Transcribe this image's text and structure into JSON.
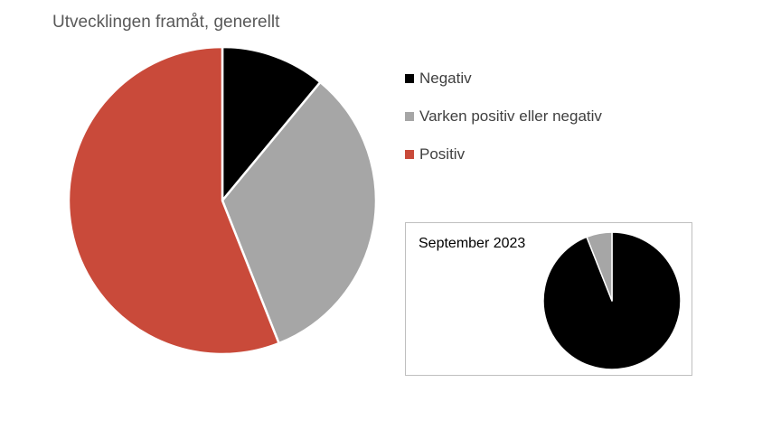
{
  "chart_data": [
    {
      "type": "pie",
      "title": "Utvecklingen framåt, generellt",
      "categories": [
        "Negativ",
        "Varken positiv eller negativ",
        "Positiv"
      ],
      "values": [
        11,
        33,
        56
      ],
      "colors": [
        "#000000",
        "#a6a6a6",
        "#c94a3a"
      ],
      "legend": "right",
      "start_angle_deg": 0,
      "direction": "clockwise"
    },
    {
      "type": "pie",
      "title": "September 2023",
      "categories": [
        "Negativ",
        "Varken positiv eller negativ",
        "Positiv"
      ],
      "values": [
        94,
        6,
        0
      ],
      "colors": [
        "#000000",
        "#a6a6a6",
        "#c94a3a"
      ],
      "start_angle_deg": 0,
      "direction": "clockwise"
    }
  ]
}
